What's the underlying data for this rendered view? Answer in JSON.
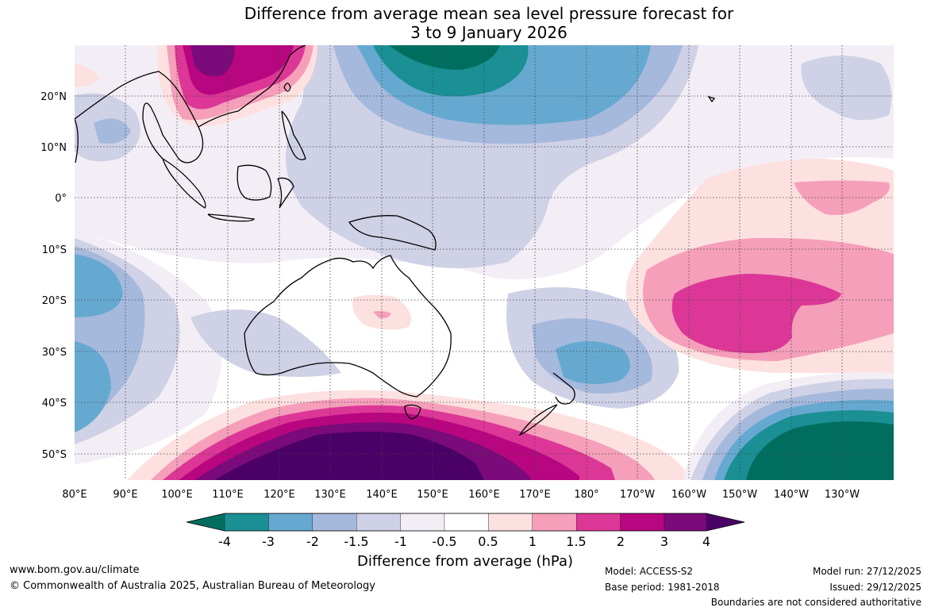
{
  "title": {
    "line1": "Difference from average mean sea level pressure forecast for",
    "line2": "3 to 9 January 2026"
  },
  "map": {
    "lat_labels": [
      "20°N",
      "10°N",
      "0°",
      "10°S",
      "20°S",
      "30°S",
      "40°S",
      "50°S"
    ],
    "lon_labels": [
      "80°E",
      "90°E",
      "100°E",
      "110°E",
      "120°E",
      "130°E",
      "140°E",
      "150°E",
      "160°E",
      "170°E",
      "180°",
      "170°W",
      "160°W",
      "150°W",
      "140°W",
      "130°W"
    ]
  },
  "legend": {
    "ticks": [
      "-4",
      "-3",
      "-2",
      "-1.5",
      "-1",
      "-0.5",
      "0.5",
      "1",
      "1.5",
      "2",
      "3",
      "4"
    ],
    "label": "Difference from average (hPa)",
    "colors": [
      "#006e5f",
      "#1a8f94",
      "#66a9d0",
      "#a5b9dc",
      "#cfd1e6",
      "#f3eef6",
      "#ffffff",
      "#fde0e0",
      "#f59fba",
      "#dc3796",
      "#b7067f",
      "#7b0a7a",
      "#4a0066"
    ]
  },
  "footer": {
    "url": "www.bom.gov.au/climate",
    "copyright": "© Commonwealth of Australia 2025, Australian Bureau of Meteorology",
    "model": "Model: ACCESS-S2",
    "base_period": "Base period: 1981-2018",
    "model_run": "Model run: 27/12/2025",
    "issued": "Issued: 29/12/2025",
    "disclaimer": "Boundaries are not considered authoritative"
  }
}
